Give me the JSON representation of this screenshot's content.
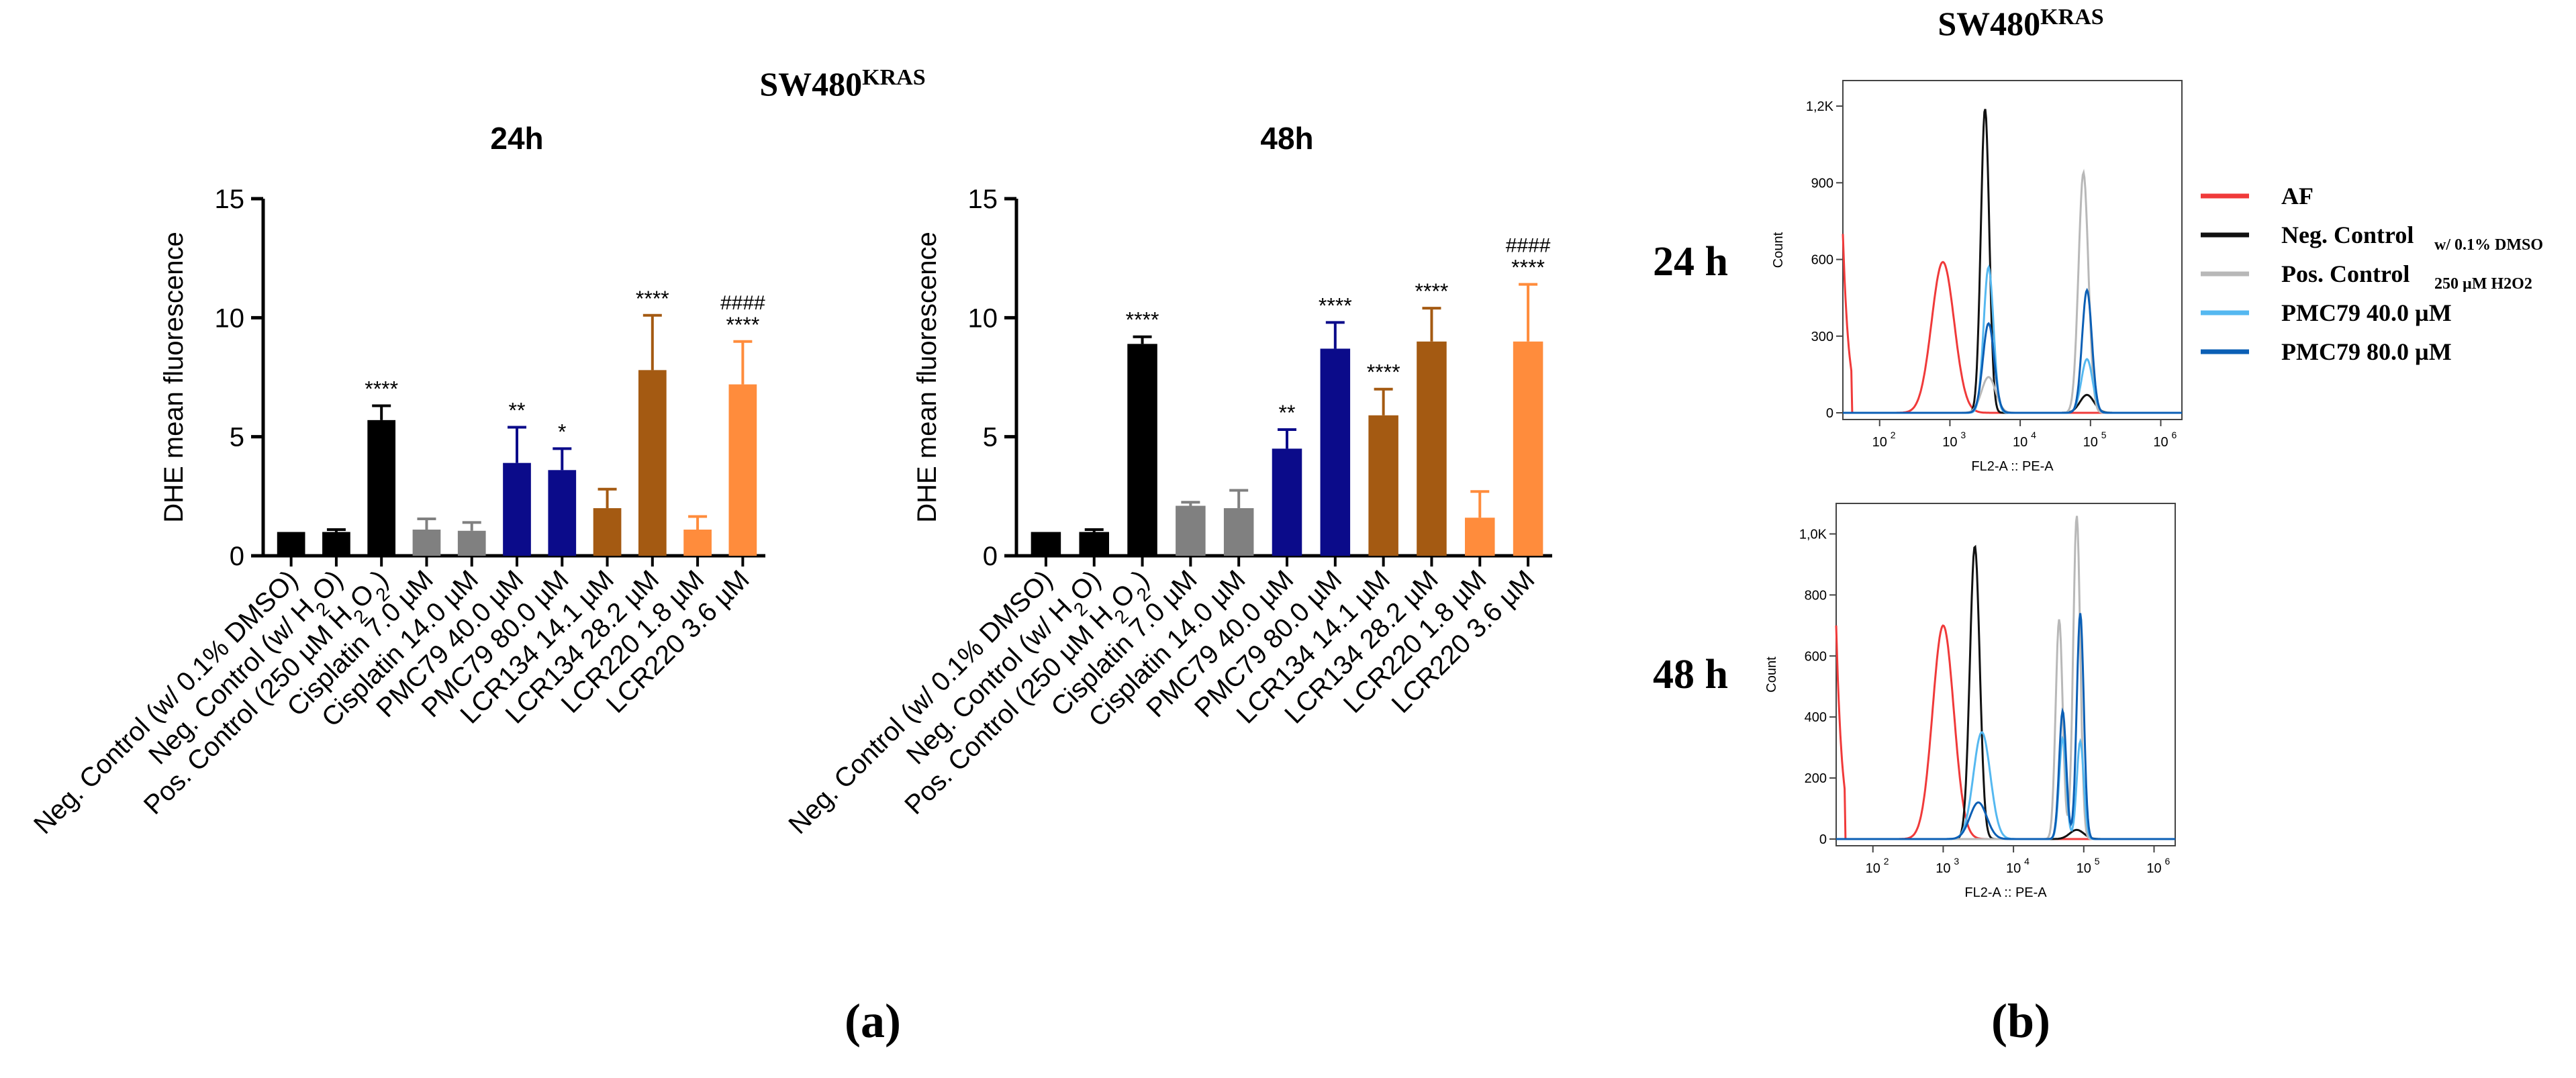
{
  "panel_a": {
    "title": "SW480",
    "title_sup": "KRAS",
    "label": "(a)"
  },
  "panel_b": {
    "title": "SW480",
    "title_sup": "KRAS",
    "label": "(b)",
    "row_labels": [
      "24 h",
      "48 h"
    ],
    "legend": [
      {
        "label": "AF",
        "sub": "",
        "color": "#f03a3a"
      },
      {
        "label": "Neg. Control",
        "sub": "w/ 0.1% DMSO",
        "color": "#111111"
      },
      {
        "label": "Pos. Control",
        "sub": "250 µM H2O2",
        "color": "#b8b8b8"
      },
      {
        "label": "PMC79 40.0 µM",
        "sub": "",
        "color": "#55b8f0"
      },
      {
        "label": "PMC79 80.0 µM",
        "sub": "",
        "color": "#0b5fb5"
      }
    ]
  },
  "colors": {
    "black": "#000000",
    "gray": "#808080",
    "navy": "#0b0b8a",
    "brown": "#a45a12",
    "orange": "#ff8c3c",
    "af": "#f03a3a",
    "neg": "#111111",
    "pos": "#b8b8b8",
    "pmc40": "#55b8f0",
    "pmc80": "#0b5fb5"
  },
  "chart_data": [
    {
      "type": "bar",
      "title": "24h",
      "ylabel": "DHE mean fluorescence",
      "ylim": [
        0,
        15
      ],
      "yticks": [
        "0",
        "5",
        "10",
        "15"
      ],
      "categories": [
        "Neg. Control (w/ 0.1% DMSO)",
        "Neg. Control (w/ H2O)",
        "Pos. Control (250 µM H2O2)",
        "Cisplatin 7.0 µM",
        "Cisplatin 14.0 µM",
        "PMC79 40.0 µM",
        "PMC79 80.0 µM",
        "LCR134 14.1 µM",
        "LCR134 28.2 µM",
        "LCR220 1.8 µM",
        "LCR220 3.6 µM"
      ],
      "values": [
        1.0,
        1.0,
        5.7,
        1.1,
        1.05,
        3.9,
        3.6,
        2.0,
        7.8,
        1.1,
        7.2
      ],
      "errors": [
        0.0,
        0.1,
        0.6,
        0.45,
        0.35,
        1.5,
        0.9,
        0.8,
        2.3,
        0.55,
        1.8
      ],
      "bar_colors": [
        "black",
        "black",
        "black",
        "gray",
        "gray",
        "navy",
        "navy",
        "brown",
        "brown",
        "orange",
        "orange"
      ],
      "annotations": [
        "",
        "",
        "****",
        "",
        "",
        "**",
        "*",
        "",
        "****",
        "",
        "****"
      ],
      "annotations2": [
        "",
        "",
        "",
        "",
        "",
        "",
        "",
        "",
        "",
        "",
        "####"
      ]
    },
    {
      "type": "bar",
      "title": "48h",
      "ylabel": "DHE mean fluorescence",
      "ylim": [
        0,
        15
      ],
      "yticks": [
        "0",
        "5",
        "10",
        "15"
      ],
      "categories": [
        "Neg. Control (w/ 0.1% DMSO)",
        "Neg. Control (w/ H2O)",
        "Pos. Control (250 µM H2O2)",
        "Cisplatin 7.0 µM",
        "Cisplatin 14.0 µM",
        "PMC79 40.0 µM",
        "PMC79 80.0 µM",
        "LCR134 14.1 µM",
        "LCR134 28.2 µM",
        "LCR220 1.8 µM",
        "LCR220 3.6 µM"
      ],
      "values": [
        1.0,
        1.0,
        8.9,
        2.1,
        2.0,
        4.5,
        8.7,
        5.9,
        9.0,
        1.6,
        9.0
      ],
      "errors": [
        0.0,
        0.1,
        0.3,
        0.15,
        0.75,
        0.8,
        1.1,
        1.1,
        1.4,
        1.1,
        2.4
      ],
      "bar_colors": [
        "black",
        "black",
        "black",
        "gray",
        "gray",
        "navy",
        "navy",
        "brown",
        "brown",
        "orange",
        "orange"
      ],
      "annotations": [
        "",
        "",
        "****",
        "",
        "",
        "**",
        "****",
        "****",
        "****",
        "",
        "****"
      ],
      "annotations2": [
        "",
        "",
        "",
        "",
        "",
        "",
        "",
        "",
        "",
        "",
        "####"
      ]
    },
    {
      "type": "line",
      "title": "24 h",
      "xlabel": "FL2-A :: PE-A",
      "ylabel": "Count",
      "x_scale": "log",
      "xlim": [
        30,
        2000000
      ],
      "ylim": [
        0,
        1300
      ],
      "yticks": [
        "0",
        "300",
        "600",
        "900",
        "1,2K"
      ],
      "ytick_values": [
        0,
        300,
        600,
        900,
        1200
      ],
      "xticks": [
        "10",
        "10",
        "10",
        "10",
        "10"
      ],
      "xtick_exponents": [
        "2",
        "3",
        "4",
        "5",
        "6"
      ],
      "series": [
        {
          "name": "AF",
          "color_key": "af",
          "peaks": [
            [
              2.9,
              590,
              0.16
            ]
          ]
        },
        {
          "name": "Neg. Control",
          "color_key": "neg",
          "peaks": [
            [
              3.5,
              1190,
              0.06
            ],
            [
              4.95,
              70,
              0.1
            ]
          ]
        },
        {
          "name": "Pos. Control",
          "color_key": "pos",
          "peaks": [
            [
              3.55,
              140,
              0.1
            ],
            [
              4.9,
              940,
              0.07
            ]
          ]
        },
        {
          "name": "PMC79 40.0 µM",
          "color_key": "pmc40",
          "peaks": [
            [
              3.55,
              570,
              0.07
            ],
            [
              4.95,
              210,
              0.08
            ]
          ]
        },
        {
          "name": "PMC79 80.0 µM",
          "color_key": "pmc80",
          "peaks": [
            [
              3.55,
              350,
              0.08
            ],
            [
              4.95,
              480,
              0.07
            ]
          ]
        }
      ]
    },
    {
      "type": "line",
      "title": "48 h",
      "xlabel": "FL2-A :: PE-A",
      "ylabel": "Count",
      "x_scale": "log",
      "xlim": [
        30,
        2000000
      ],
      "ylim": [
        0,
        1100
      ],
      "yticks": [
        "0",
        "200",
        "400",
        "600",
        "800",
        "1,0K"
      ],
      "ytick_values": [
        0,
        200,
        400,
        600,
        800,
        1000
      ],
      "xticks": [
        "10",
        "10",
        "10",
        "10",
        "10"
      ],
      "xtick_exponents": [
        "2",
        "3",
        "4",
        "5",
        "6"
      ],
      "series": [
        {
          "name": "AF",
          "color_key": "af",
          "peaks": [
            [
              3.0,
              700,
              0.15
            ]
          ]
        },
        {
          "name": "Neg. Control",
          "color_key": "neg",
          "peaks": [
            [
              3.45,
              960,
              0.07
            ],
            [
              4.9,
              30,
              0.1
            ]
          ]
        },
        {
          "name": "Pos. Control",
          "color_key": "pos",
          "peaks": [
            [
              4.65,
              720,
              0.05
            ],
            [
              4.9,
              1060,
              0.05
            ]
          ]
        },
        {
          "name": "PMC79 40.0 µM",
          "color_key": "pmc40",
          "peaks": [
            [
              3.55,
              350,
              0.12
            ],
            [
              4.7,
              330,
              0.05
            ],
            [
              4.95,
              320,
              0.05
            ]
          ]
        },
        {
          "name": "PMC79 80.0 µM",
          "color_key": "pmc80",
          "peaks": [
            [
              3.5,
              120,
              0.12
            ],
            [
              4.7,
              420,
              0.05
            ],
            [
              4.95,
              740,
              0.05
            ]
          ]
        }
      ]
    }
  ]
}
